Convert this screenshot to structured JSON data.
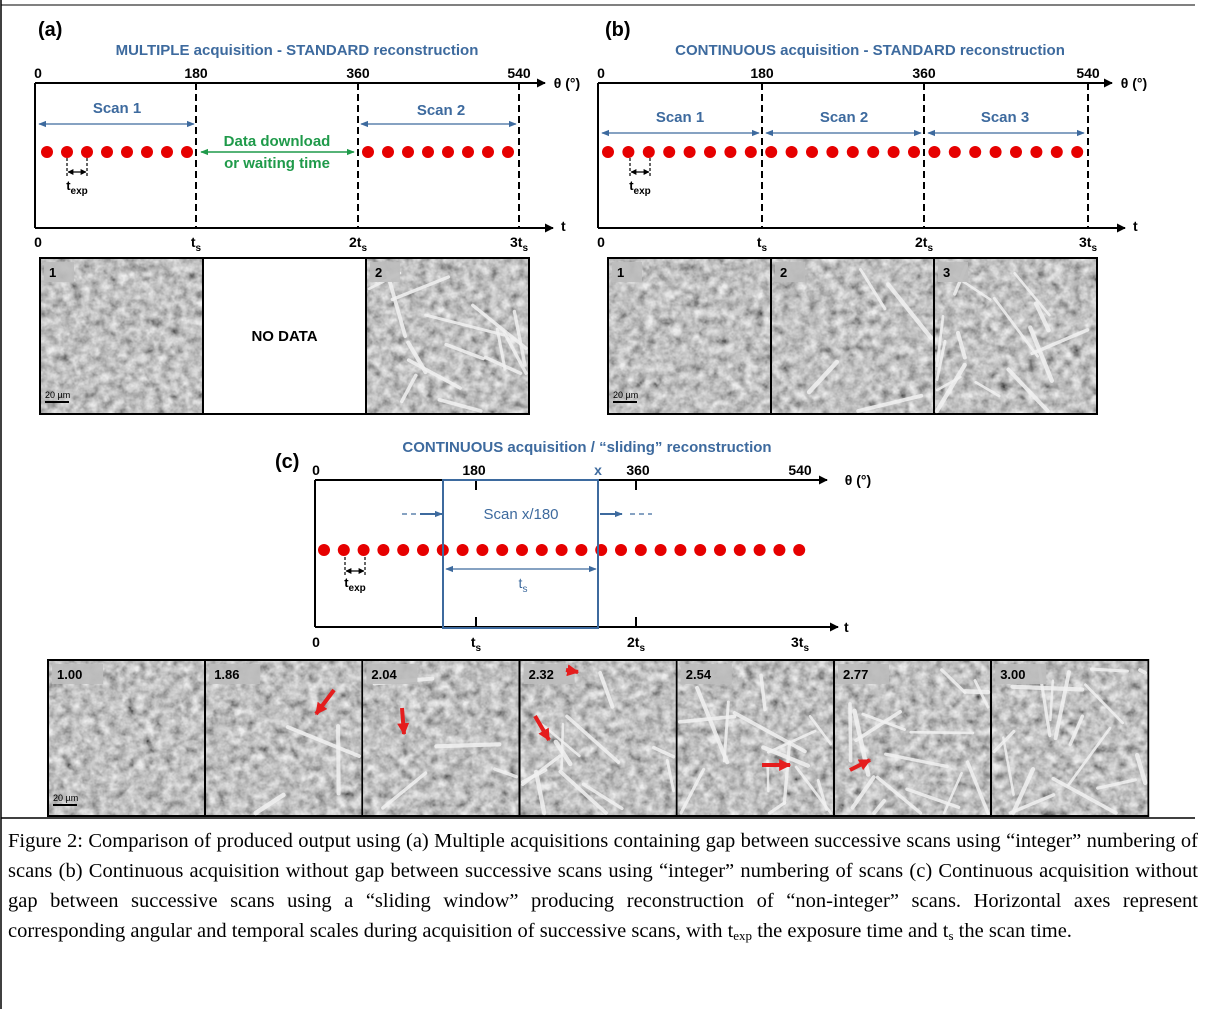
{
  "panel_a": {
    "label": "(a)",
    "title": "MULTIPLE acquisition - STANDARD reconstruction",
    "theta_ticks": [
      "0",
      "180",
      "360",
      "540"
    ],
    "theta_label": "θ (°)",
    "t_label": "t",
    "t_ticks": [
      "0",
      {
        "base": "t",
        "sub": "s"
      },
      {
        "base": "2t",
        "sub": "s"
      },
      {
        "base": "3t",
        "sub": "s"
      }
    ],
    "scans": [
      "Scan 1",
      "Scan 2"
    ],
    "gap_text": [
      "Data download",
      "or waiting time"
    ],
    "texp": {
      "base": "t",
      "sub": "exp"
    },
    "images": [
      "1",
      "NO DATA",
      "2"
    ],
    "scale_bar": "20 µm"
  },
  "panel_b": {
    "label": "(b)",
    "title": "CONTINUOUS acquisition - STANDARD reconstruction",
    "theta_ticks": [
      "0",
      "180",
      "360",
      "540"
    ],
    "theta_label": "θ (°)",
    "t_label": "t",
    "t_ticks": [
      "0",
      {
        "base": "t",
        "sub": "s"
      },
      {
        "base": "2t",
        "sub": "s"
      },
      {
        "base": "3t",
        "sub": "s"
      }
    ],
    "scans": [
      "Scan 1",
      "Scan 2",
      "Scan 3"
    ],
    "texp": {
      "base": "t",
      "sub": "exp"
    },
    "images": [
      "1",
      "2",
      "3"
    ],
    "scale_bar": "20 µm"
  },
  "panel_c": {
    "label": "(c)",
    "title": "CONTINUOUS acquisition / “sliding” reconstruction",
    "theta_ticks": [
      "0",
      "180",
      "x",
      "360",
      "540"
    ],
    "theta_label": "θ (°)",
    "t_label": "t",
    "t_ticks": [
      "0",
      {
        "base": "t",
        "sub": "s"
      },
      {
        "base": "2t",
        "sub": "s"
      },
      {
        "base": "3t",
        "sub": "s"
      }
    ],
    "scan": "Scan x/180",
    "window": "t",
    "window_sub": "s",
    "texp": {
      "base": "t",
      "sub": "exp"
    },
    "images": [
      "1.00",
      "1.86",
      "2.04",
      "2.32",
      "2.54",
      "2.77",
      "3.00"
    ],
    "scale_bar": "20 µm"
  },
  "caption": [
    "Figure 2: Comparison of produced output using (a) Multiple acquisitions containing gap between successive scans using “integer” numbering of scans (b) Continuous acquisition without gap between successive scans using “integer” numbering of scans (c) Continuous acquisition without gap between successive scans using a “sliding window” producing reconstruction of “non-integer” scans. Horizontal axes represent corresponding angular and temporal scales during acquisition of successive scans, with t",
    "exp",
    " the exposure time and t",
    "s",
    " the scan time."
  ]
}
